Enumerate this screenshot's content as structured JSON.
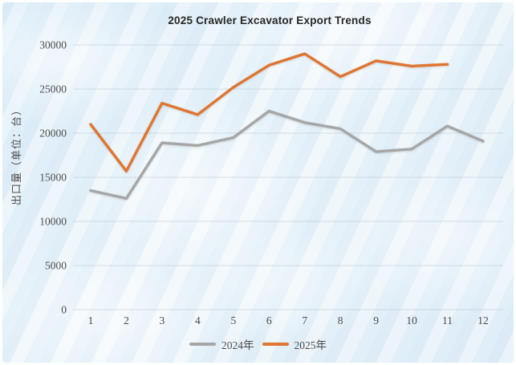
{
  "chart_data": {
    "type": "line",
    "title": "2025 Crawler Excavator Export Trends",
    "ylabel": "出口量（单位：台）",
    "xlabel": "",
    "x_ticks": [
      "1",
      "2",
      "3",
      "4",
      "5",
      "6",
      "7",
      "8",
      "9",
      "10",
      "11",
      "12"
    ],
    "ylim": [
      0,
      30000
    ],
    "ytick_step": 5000,
    "grid": true,
    "legend_position": "bottom-center",
    "series": [
      {
        "name": "2024年",
        "color": "#a6a6a6",
        "values": [
          13500,
          12600,
          18900,
          18600,
          19500,
          22500,
          21200,
          20500,
          17900,
          18200,
          20800,
          19100
        ]
      },
      {
        "name": "2025年",
        "color": "#e0752f",
        "values": [
          21000,
          15700,
          23400,
          22100,
          25200,
          27700,
          29000,
          26400,
          28200,
          27600,
          27800
        ]
      }
    ],
    "colors": {
      "background": "#e9f2f9",
      "title_text": "#262626",
      "axis_text": "#4d4d4d",
      "gridline": "#aebfcc"
    }
  }
}
